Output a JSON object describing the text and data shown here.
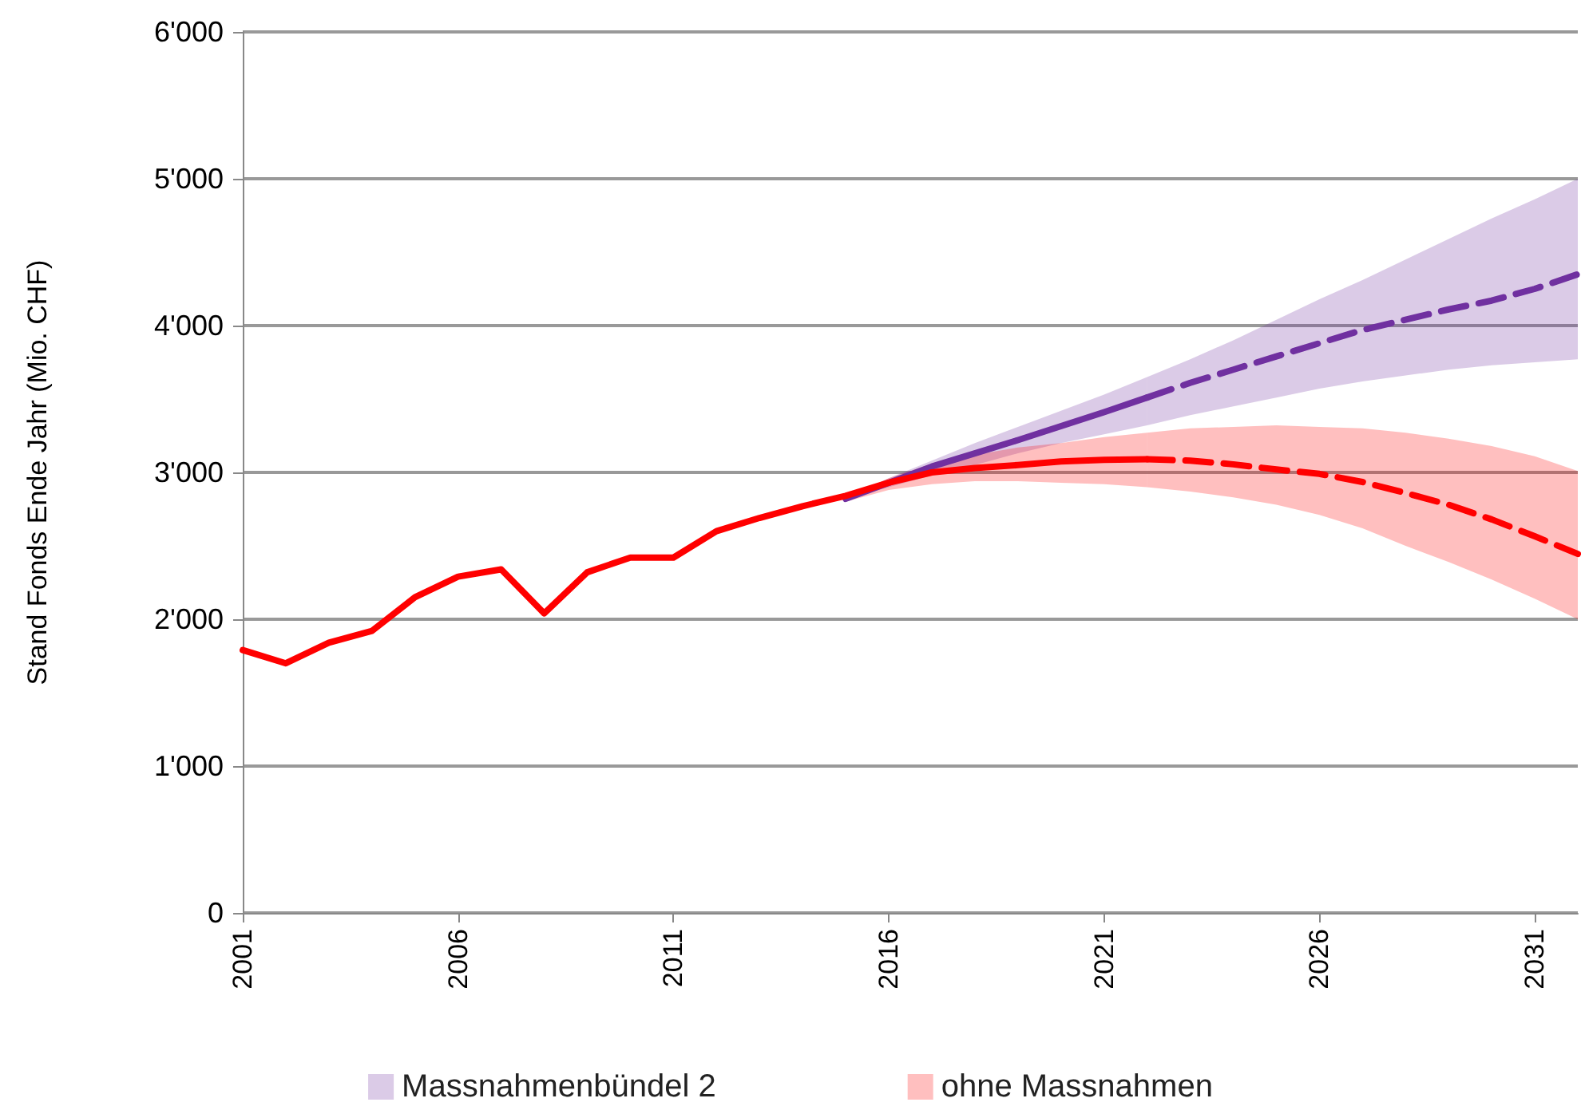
{
  "chart_data": {
    "type": "line",
    "ylabel": "Stand Fonds Ende Jahr (Mio. CHF)",
    "xlim": [
      2001,
      2032
    ],
    "xticks": [
      2001,
      2006,
      2011,
      2016,
      2021,
      2026,
      2031
    ],
    "ylim": [
      0,
      6000
    ],
    "yticks": [
      0,
      {
        "value": 1000,
        "label": "1'000"
      },
      {
        "value": 2000,
        "label": "2'000"
      },
      {
        "value": 3000,
        "label": "3'000"
      },
      {
        "value": 4000,
        "label": "4'000"
      },
      {
        "value": 5000,
        "label": "5'000"
      },
      {
        "value": 6000,
        "label": "6'000"
      }
    ],
    "grid": "y",
    "legend": "bottom",
    "marker": "none",
    "series": [
      {
        "name": "Massnahmenbündel 2",
        "color": "#7030a0",
        "line_style": "solid",
        "x": [
          2015,
          2016,
          2017,
          2018,
          2019,
          2020,
          2021,
          2022
        ],
        "values": [
          2820,
          2930,
          3040,
          3130,
          3220,
          3315,
          3410,
          3510
        ],
        "lower": [
          2820,
          2900,
          2980,
          3050,
          3130,
          3200,
          3260,
          3320
        ],
        "upper": [
          2820,
          2960,
          3080,
          3200,
          3310,
          3420,
          3530,
          3650
        ]
      },
      {
        "color": "#7030a0",
        "line_style": "dashed",
        "x": [
          2022,
          2023,
          2024,
          2025,
          2026,
          2027,
          2028,
          2029,
          2030,
          2031,
          2032
        ],
        "values": [
          3510,
          3610,
          3700,
          3790,
          3880,
          3970,
          4040,
          4110,
          4170,
          4250,
          4350
        ],
        "lower": [
          3320,
          3390,
          3450,
          3510,
          3570,
          3620,
          3660,
          3700,
          3730,
          3750,
          3770
        ],
        "upper": [
          3650,
          3770,
          3900,
          4040,
          4180,
          4310,
          4450,
          4590,
          4730,
          4860,
          5000
        ]
      },
      {
        "name": "ohne Massnahmen",
        "color": "#ff0000",
        "line_style": "solid",
        "x": [
          2001,
          2002,
          2003,
          2004,
          2005,
          2006,
          2007,
          2008,
          2009,
          2010,
          2011,
          2012,
          2013,
          2014,
          2015,
          2016,
          2017,
          2018,
          2019,
          2020,
          2021,
          2022
        ],
        "values": [
          1790,
          1700,
          1840,
          1920,
          2150,
          2290,
          2340,
          2040,
          2320,
          2420,
          2420,
          2600,
          2690,
          2770,
          2840,
          2930,
          3000,
          3030,
          3050,
          3075,
          3085,
          3090
        ],
        "lower": [
          null,
          null,
          null,
          null,
          null,
          null,
          null,
          null,
          null,
          null,
          null,
          null,
          null,
          null,
          2800,
          2880,
          2920,
          2940,
          2940,
          2930,
          2920,
          2900
        ],
        "upper": [
          null,
          null,
          null,
          null,
          null,
          null,
          null,
          null,
          null,
          null,
          null,
          null,
          null,
          null,
          2830,
          2960,
          3060,
          3120,
          3170,
          3200,
          3240,
          3270
        ]
      },
      {
        "color": "#ff0000",
        "line_style": "dashed",
        "x": [
          2022,
          2023,
          2024,
          2025,
          2026,
          2027,
          2028,
          2029,
          2030,
          2031,
          2032
        ],
        "values": [
          3090,
          3080,
          3055,
          3020,
          2990,
          2935,
          2860,
          2780,
          2680,
          2565,
          2445
        ],
        "lower": [
          2900,
          2870,
          2830,
          2780,
          2710,
          2620,
          2500,
          2390,
          2270,
          2140,
          2000
        ],
        "upper": [
          3270,
          3300,
          3310,
          3320,
          3310,
          3300,
          3270,
          3230,
          3180,
          3110,
          3010
        ]
      }
    ]
  }
}
